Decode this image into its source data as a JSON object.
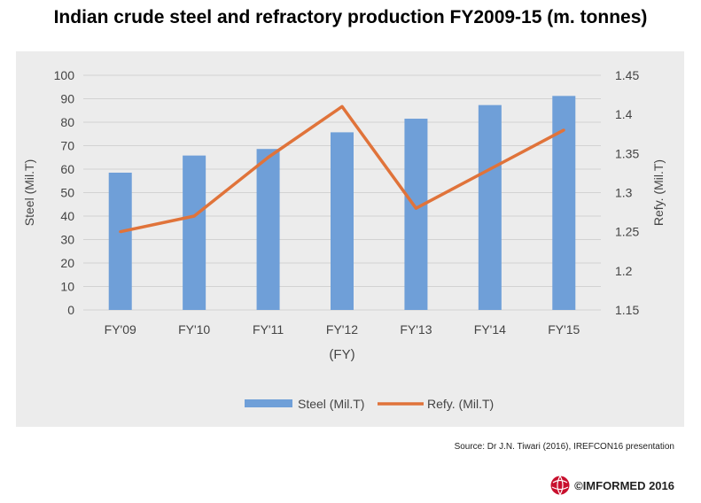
{
  "title": "Indian crude steel and refractory production FY2009-15  (m. tonnes)",
  "source": "Source: Dr J.N. Tiwari (2016), IREFCON16  presentation",
  "brand": "©IMFORMED 2016",
  "colors": {
    "bar": "#6f9fd8",
    "line": "#e0733a",
    "panel": "#ececec"
  },
  "chart_data": {
    "type": "bar",
    "categories": [
      "FY'09",
      "FY'10",
      "FY'11",
      "FY'12",
      "FY'13",
      "FY'14",
      "FY'15"
    ],
    "xlabel": "(FY)",
    "ylabel": "Steel (Mil.T)",
    "y2label": "Refy. (Mil.T)",
    "ylim": [
      0,
      100
    ],
    "y2lim": [
      1.15,
      1.45
    ],
    "yticks": [
      0,
      10,
      20,
      30,
      40,
      50,
      60,
      70,
      80,
      90,
      100
    ],
    "y2ticks": [
      1.15,
      1.2,
      1.25,
      1.3,
      1.35,
      1.4,
      1.45
    ],
    "grid": true,
    "legend_position": "bottom",
    "series": [
      {
        "name": "Steel (Mil.T)",
        "type": "bar",
        "axis": "left",
        "values": [
          58.5,
          65.8,
          68.6,
          75.7,
          81.5,
          87.3,
          91.2
        ]
      },
      {
        "name": "Refy. (Mil.T)",
        "type": "line",
        "axis": "right",
        "values": [
          1.25,
          1.27,
          1.345,
          1.41,
          1.28,
          1.33,
          1.38
        ]
      }
    ]
  }
}
